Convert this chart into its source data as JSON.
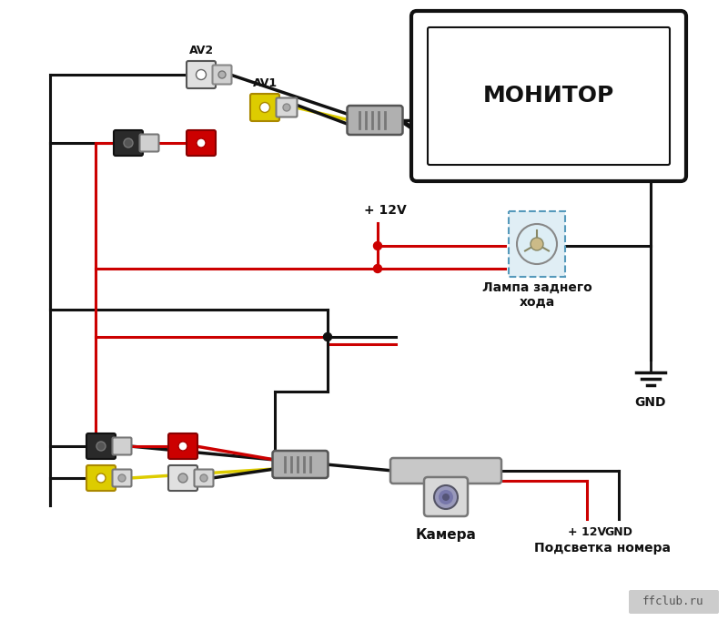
{
  "bg_color": "#ffffff",
  "fig_width": 8.0,
  "fig_height": 6.82,
  "dpi": 100,
  "monitor_label": "МОНИТОР",
  "lamp_label": "Лампа заднего\nхода",
  "camera_label": "Камера",
  "power_label": "Подсветка номера",
  "gnd_label": "GND",
  "plus12v_label": "+ 12V",
  "av1_label": "AV1",
  "av2_label": "AV2",
  "ffclub_label": "ffclub.ru",
  "black": "#111111",
  "red": "#cc0000",
  "yellow": "#ddcc00",
  "gray_dark": "#555555",
  "gray_med": "#aaaaaa",
  "gray_light": "#cccccc",
  "lamp_border": "#5599bb",
  "lamp_fill": "#e0eef5",
  "lw": 2.2
}
